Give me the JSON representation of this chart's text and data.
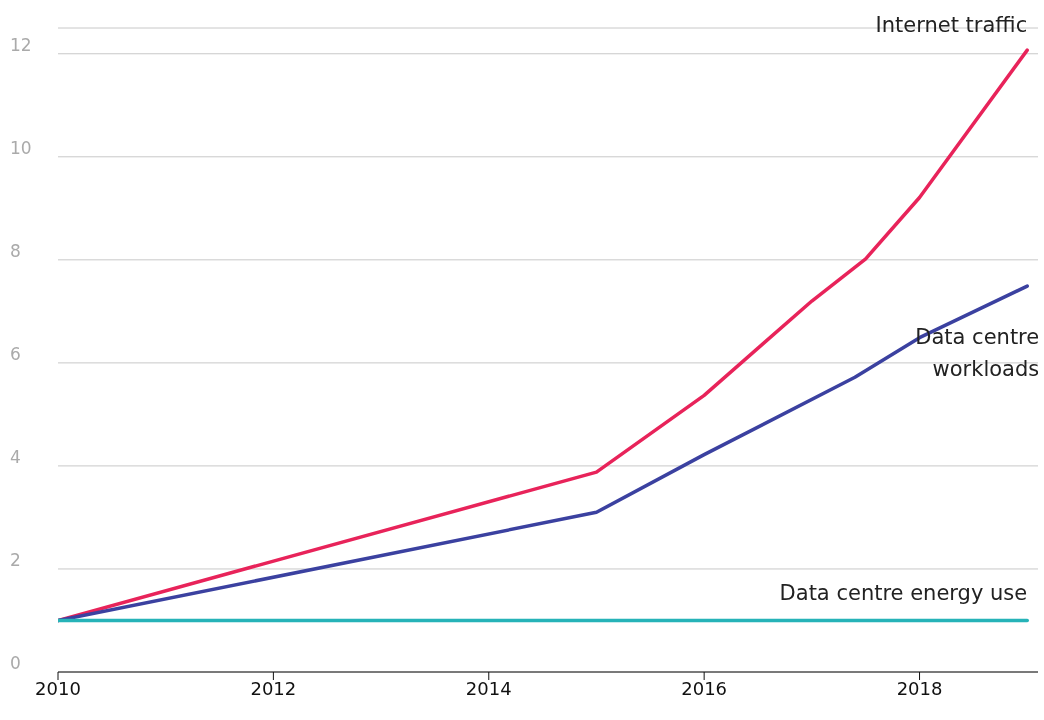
{
  "chart_data": {
    "type": "line",
    "x": [
      2010,
      2015,
      2016,
      2017,
      2017.5,
      2018,
      2019
    ],
    "series": [
      {
        "name": "Internet traffic",
        "color": "#e8235a",
        "values": [
          1.0,
          3.88,
          5.37,
          7.2,
          8.02,
          9.21,
          12.07
        ]
      },
      {
        "name": "Data centre workloads",
        "color": "#3b41a0",
        "x": [
          2010,
          2015,
          2016,
          2017.4,
          2018,
          2019
        ],
        "values": [
          1.0,
          3.1,
          4.22,
          5.72,
          6.49,
          7.49
        ]
      },
      {
        "name": "Data centre energy use",
        "color": "#26b3b8",
        "x": [
          2010,
          2019
        ],
        "values": [
          1.0,
          1.0
        ]
      }
    ],
    "xlim": [
      2010,
      2019.1
    ],
    "xticks": [
      2010,
      2012,
      2014,
      2016,
      2018
    ],
    "ylim": [
      0,
      12.5
    ],
    "yticks": [
      0,
      2,
      4,
      6,
      8,
      10,
      12
    ],
    "grid": "y",
    "legend": false,
    "marker": "none",
    "line_style": "solid"
  }
}
